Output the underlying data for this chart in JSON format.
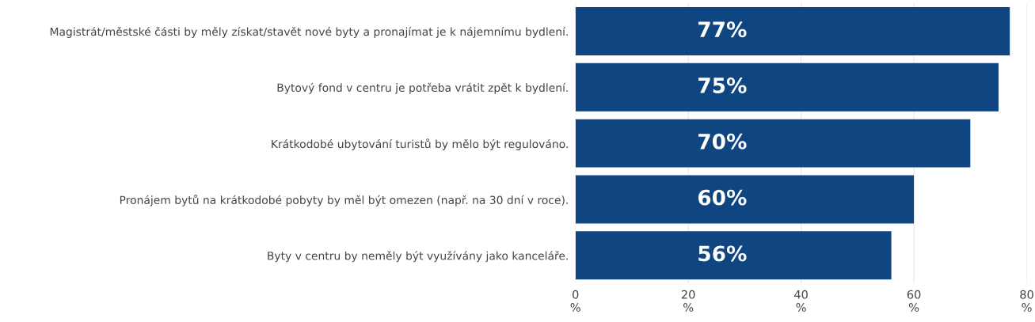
{
  "chart_data": {
    "type": "bar",
    "orientation": "horizontal",
    "categories": [
      "Magistrát/městské části by měly získat/stavět nové byty a pronajímat je k nájemnímu bydlení.",
      "Bytový fond v centru je potřeba vrátit zpět k bydlení.",
      "Krátkodobé ubytování turistů by mělo být regulováno.",
      "Pronájem bytů na krátkodobé pobyty by měl být omezen (např. na 30 dní v roce).",
      "Byty v centru by neměly být využívány jako kanceláře."
    ],
    "values": [
      77,
      75,
      70,
      60,
      56
    ],
    "value_labels": [
      "77%",
      "75%",
      "70%",
      "60%",
      "56%"
    ],
    "color": "#0f4580",
    "xlim": [
      0,
      80
    ],
    "xticks": [
      {
        "value": 0,
        "label": "0\n%"
      },
      {
        "value": 20,
        "label": "20\n%"
      },
      {
        "value": 40,
        "label": "40\n%"
      },
      {
        "value": 60,
        "label": "60\n%"
      },
      {
        "value": 80,
        "label": "80\n%"
      }
    ],
    "grid": "x",
    "legend": false
  }
}
